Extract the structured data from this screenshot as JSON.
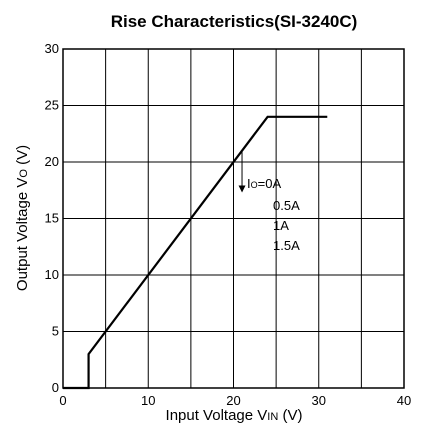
{
  "chart_data": {
    "type": "line",
    "title": "Rise Characteristics(SI-3240C)",
    "xlabel": {
      "main": "Input Voltage V",
      "subscript": "IN",
      "unit": " (V)"
    },
    "ylabel": {
      "main": "Output Voltage V",
      "subscript": "O",
      "unit": " (V)"
    },
    "xlim": [
      0,
      40
    ],
    "ylim": [
      0,
      30
    ],
    "xticks": [
      "0",
      "10",
      "20",
      "30",
      "40"
    ],
    "yticks": [
      "0",
      "5",
      "10",
      "15",
      "20",
      "25",
      "30"
    ],
    "grid": true,
    "series": [
      {
        "x": [
          0,
          3,
          3,
          24,
          31
        ],
        "y": [
          0,
          0,
          3,
          24,
          24
        ]
      }
    ],
    "annotation": {
      "arrow": {
        "from": [
          21,
          21
        ],
        "to": [
          21,
          17.3
        ]
      },
      "head": {
        "letter": "I",
        "subscript": "O",
        "text": "=0A"
      },
      "items": [
        "0.5A",
        "1A",
        "1.5A"
      ]
    }
  }
}
